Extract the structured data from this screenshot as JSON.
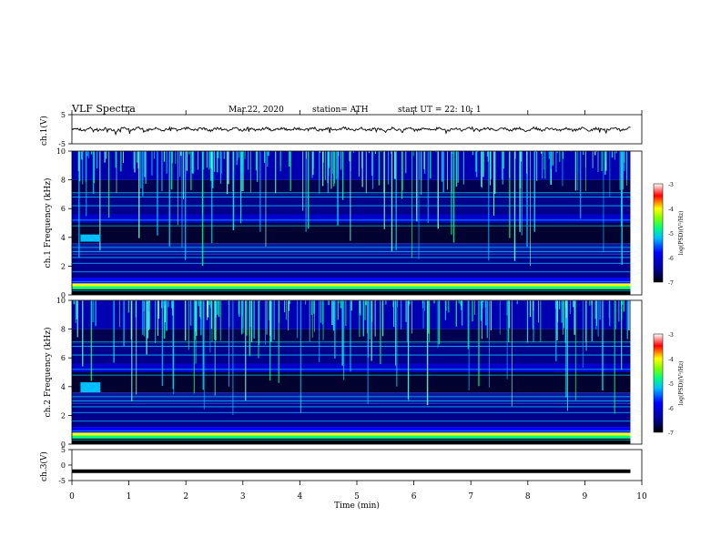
{
  "header": {
    "title": "VLF  Spectra",
    "date": "Mar.22, 2020",
    "station": "station= ATH",
    "start": "start  UT  =    22: 10: 1"
  },
  "chart_data": [
    {
      "type": "line",
      "panel": "ch1-waveform",
      "ylabel": "ch.1(V)",
      "ylim": [
        -5,
        5
      ],
      "yticks": [
        "5",
        "-5"
      ],
      "x_range_min": [
        0,
        9.8
      ],
      "description_values": "noisy waveform near 0 V with amplitude about +/-0.8 V, occasional spikes to about -1.5 V"
    },
    {
      "type": "heatmap",
      "panel": "ch1-spectrogram",
      "ylabel": "ch.1  Frequency  (kHz)",
      "ylim": [
        0,
        10
      ],
      "yticks": [
        "0",
        "2",
        "4",
        "6",
        "8",
        "10"
      ],
      "x_range_min": [
        0,
        9.8
      ],
      "bright_burst": {
        "t_min": [
          0.15,
          0.5
        ],
        "f_khz": [
          3.7,
          4.2
        ]
      },
      "colorbar": {
        "label": "log(PSD)(V²/Hz)",
        "range": [
          -7,
          -3
        ],
        "ticks": [
          "-3",
          "-4",
          "-5",
          "-6",
          "-7"
        ]
      }
    },
    {
      "type": "heatmap",
      "panel": "ch2-spectrogram",
      "ylabel": "ch.2  Frequency  (kHz)",
      "ylim": [
        0,
        10
      ],
      "yticks": [
        "0",
        "2",
        "4",
        "6",
        "8",
        "10"
      ],
      "x_range_min": [
        0,
        9.8
      ],
      "bright_burst": {
        "t_min": [
          0.15,
          0.5
        ],
        "f_khz": [
          3.6,
          4.3
        ]
      },
      "colorbar": {
        "label": "log(PSD)(V²/Hz)",
        "range": [
          -7,
          -3
        ],
        "ticks": [
          "-3",
          "-4",
          "-5",
          "-6",
          "-7"
        ]
      }
    },
    {
      "type": "line",
      "panel": "ch3-waveform",
      "ylabel": "ch.3(V)",
      "ylim": [
        -5,
        5
      ],
      "yticks": [
        "5",
        "0",
        "-5"
      ],
      "x_range_min": [
        0,
        9.8
      ],
      "constant_value": -2
    }
  ],
  "xaxis": {
    "label": "Time  (min)",
    "range": [
      0,
      10
    ],
    "ticks": [
      "0",
      "1",
      "2",
      "3",
      "4",
      "5",
      "6",
      "7",
      "8",
      "9",
      "10"
    ]
  },
  "colors": {
    "colormap": [
      "#000000",
      "#00008b",
      "#0000ff",
      "#00bfff",
      "#00ff7f",
      "#ffff00",
      "#ff0000",
      "#ffffff"
    ]
  }
}
